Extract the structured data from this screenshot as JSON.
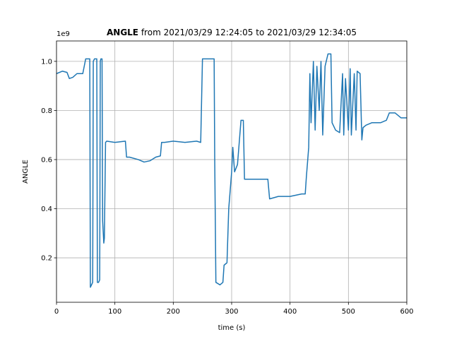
{
  "chart_data": {
    "type": "line",
    "title_bold": "ANGLE",
    "title": " from 2021/03/29 12:24:05 to 2021/03/29 12:34:05",
    "x_label": "time (s)",
    "y_label": "ANGLE",
    "y_offset": "1e9",
    "grid": true,
    "xlim": [
      0,
      600
    ],
    "xticks": [
      0,
      100,
      200,
      300,
      400,
      500,
      600
    ],
    "ylim": [
      0.019,
      1.083
    ],
    "yticks": [
      0.2,
      0.4,
      0.6,
      0.8,
      {
        "value": 1,
        "label": "1.0"
      }
    ],
    "series": [
      {
        "name": "ANGLE",
        "color": "#1f77b4",
        "x": [
          0,
          10,
          18,
          22,
          28,
          35,
          45,
          50,
          55,
          57,
          58,
          60,
          62,
          63,
          65,
          69,
          70,
          72,
          74,
          75,
          76,
          78,
          79,
          81,
          82,
          84,
          86,
          100,
          118,
          120,
          125,
          140,
          150,
          160,
          170,
          178,
          180,
          185,
          200,
          220,
          240,
          247,
          250,
          260,
          270,
          271,
          273,
          280,
          285,
          287,
          292,
          295,
          300,
          302,
          305,
          310,
          314,
          316,
          320,
          322,
          330,
          345,
          362,
          365,
          380,
          400,
          420,
          426,
          428,
          432,
          434,
          436,
          440,
          443,
          446,
          450,
          453,
          456,
          460,
          465,
          470,
          472,
          478,
          485,
          490,
          492,
          495,
          500,
          503,
          505,
          510,
          513,
          515,
          520,
          523,
          525,
          530,
          540,
          555,
          565,
          570,
          580,
          590,
          600
        ],
        "values": [
          0.95,
          0.96,
          0.955,
          0.93,
          0.935,
          0.95,
          0.95,
          1.01,
          1.01,
          1.01,
          0.08,
          0.09,
          0.1,
          1.0,
          1.01,
          1.01,
          0.1,
          0.1,
          0.11,
          1.0,
          1.01,
          1.01,
          0.35,
          0.26,
          0.28,
          0.67,
          0.675,
          0.67,
          0.675,
          0.61,
          0.61,
          0.6,
          0.59,
          0.595,
          0.61,
          0.615,
          0.67,
          0.67,
          0.675,
          0.67,
          0.675,
          0.67,
          1.01,
          1.01,
          1.01,
          0.6,
          0.1,
          0.09,
          0.1,
          0.17,
          0.18,
          0.4,
          0.55,
          0.65,
          0.55,
          0.58,
          0.7,
          0.76,
          0.76,
          0.52,
          0.52,
          0.52,
          0.52,
          0.44,
          0.45,
          0.45,
          0.46,
          0.46,
          0.53,
          0.65,
          0.95,
          0.75,
          1.0,
          0.72,
          0.98,
          0.8,
          1.0,
          0.7,
          0.98,
          1.03,
          1.03,
          0.75,
          0.72,
          0.71,
          0.95,
          0.7,
          0.93,
          0.72,
          0.97,
          0.7,
          0.95,
          0.72,
          0.96,
          0.95,
          0.68,
          0.73,
          0.74,
          0.75,
          0.75,
          0.76,
          0.79,
          0.79,
          0.77,
          0.77
        ]
      }
    ]
  }
}
